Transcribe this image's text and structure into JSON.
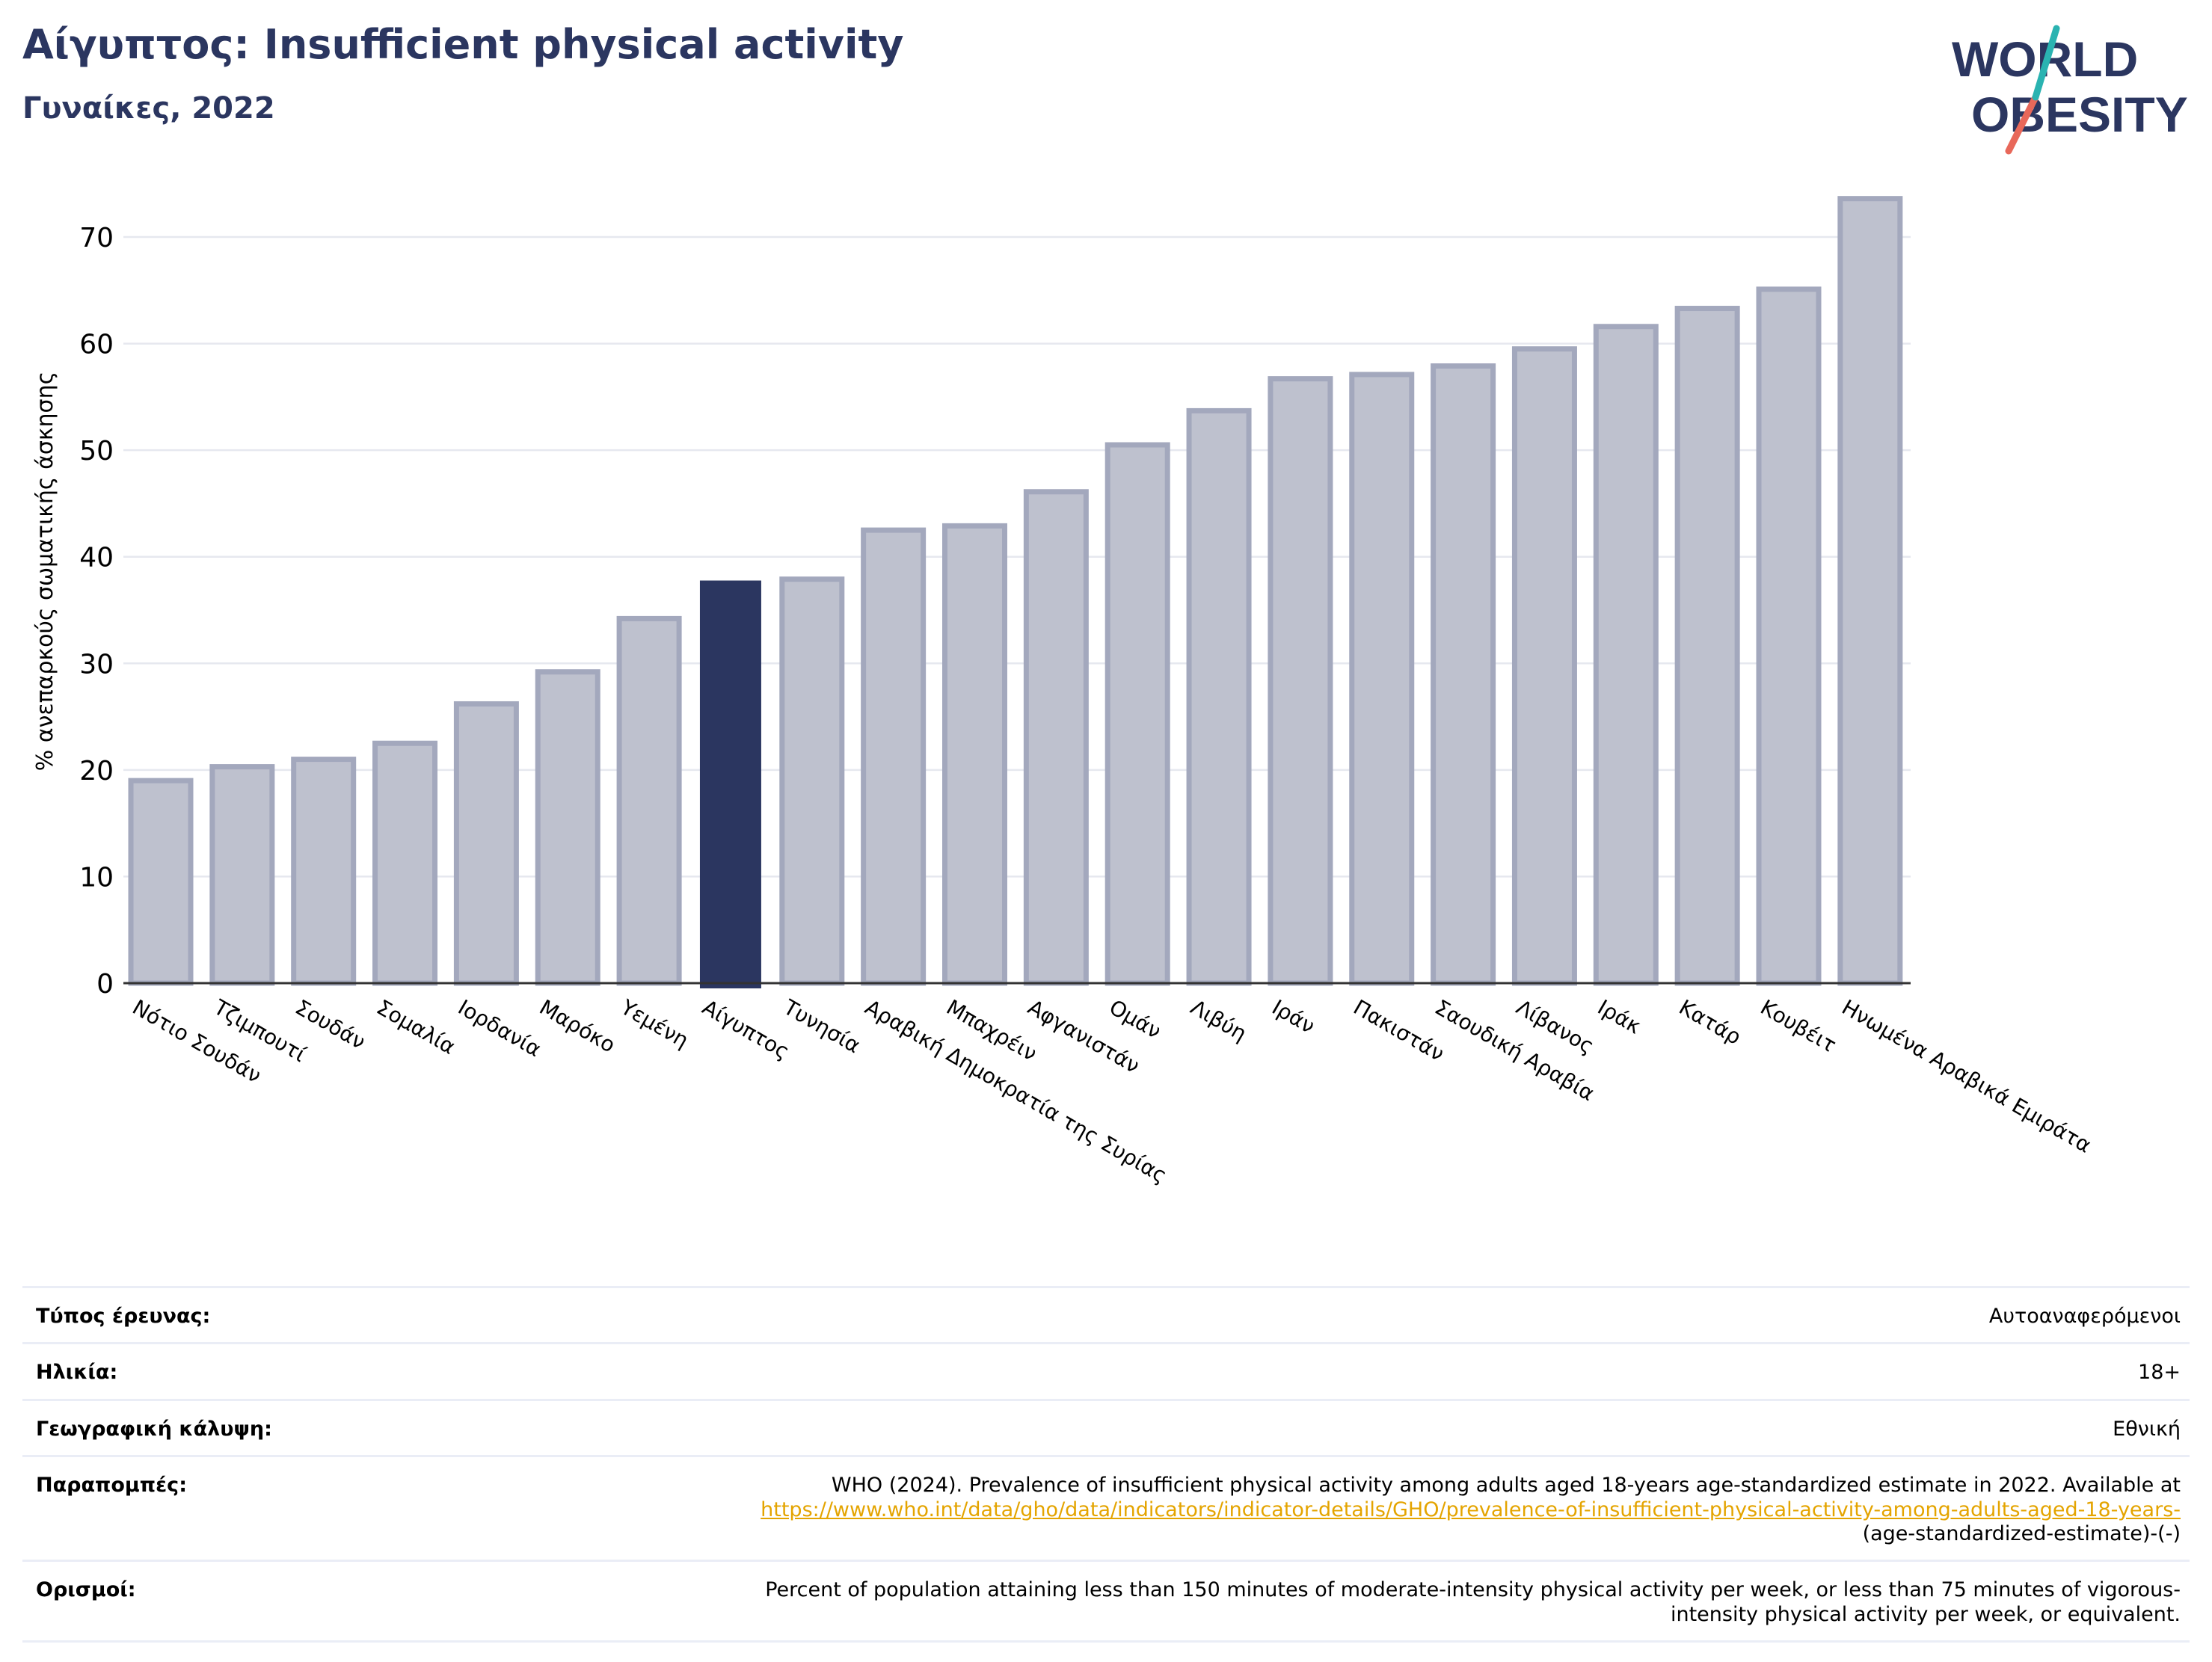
{
  "header": {
    "title": "Αίγυπτος: Insufficient physical activity",
    "subtitle": "Γυναίκες, 2022"
  },
  "logo": {
    "line1": "WORLD",
    "line2": "OBESITY"
  },
  "colors": {
    "highlight": "#2b3660",
    "bar": "#bec1ce",
    "bar_border": "#a3a8bd",
    "title": "#2b3660",
    "link": "#e4a400"
  },
  "chart_data": {
    "type": "bar",
    "ylabel": "% ανεπαρκούς σωματικής άσκησης",
    "ylim": [
      0,
      75
    ],
    "yticks": [
      0,
      10,
      20,
      30,
      40,
      50,
      60,
      70
    ],
    "grid": true,
    "highlight": "Αίγυπτος",
    "categories": [
      "Νότιο Σουδάν",
      "Τζιμπουτί",
      "Σουδάν",
      "Σομαλία",
      "Ιορδανία",
      "Μαρόκο",
      "Υεμένη",
      "Αίγυπτος",
      "Τυνησία",
      "Αραβική Δημοκρατία της Συρίας",
      "Μπαχρέιν",
      "Αφγανιστάν",
      "Ομάν",
      "Λιβύη",
      "Ιράν",
      "Πακιστάν",
      "Σαουδική Αραβία",
      "Λίβανος",
      "Ιράκ",
      "Κατάρ",
      "Κουβέιτ",
      "Ηνωμένα Αραβικά Εμιράτα"
    ],
    "values": [
      19.0,
      20.3,
      21.0,
      22.5,
      26.2,
      29.2,
      34.2,
      37.7,
      37.9,
      42.5,
      42.9,
      46.1,
      50.5,
      53.7,
      56.7,
      57.1,
      57.9,
      59.5,
      61.6,
      63.3,
      65.1,
      73.6
    ]
  },
  "meta": {
    "survey_label": "Τύπος έρευνας:",
    "survey_value": "Αυτοαναφερόμενοι",
    "age_label": "Ηλικία:",
    "age_value": "18+",
    "coverage_label": "Γεωγραφική κάλυψη:",
    "coverage_value": "Εθνική",
    "refs_label": "Παραπομπές:",
    "refs_text": "WHO (2024). Prevalence of insufficient physical activity among adults aged 18-years age-standardized estimate in 2022. Available at",
    "refs_link": "https://www.who.int/data/gho/data/indicators/indicator-details/GHO/prevalence-of-insufficient-physical-activity-among-adults-aged-18-years-",
    "refs_tail": "(age-standardized-estimate)-(-)",
    "def_label": "Ορισμοί:",
    "def_line1": "Percent of population attaining less than 150 minutes of moderate-intensity physical activity per week, or less than 75 minutes of vigorous-",
    "def_line2": "intensity physical activity per week, or equivalent."
  }
}
